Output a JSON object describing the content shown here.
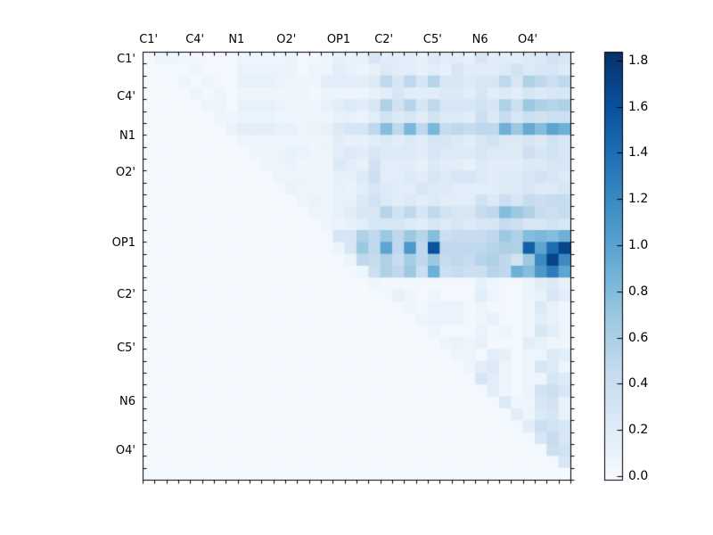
{
  "chart_data": {
    "type": "heatmap",
    "title": "",
    "colormap": "Blues",
    "vmin": 0.0,
    "vmax": 1.84,
    "n_cells": 36,
    "grid": false,
    "legend_position": "right-colorbar",
    "x_tick_labels": [
      "C1'",
      "C4'",
      "N1",
      "O2'",
      "OP1",
      "C2'",
      "C5'",
      "N6",
      "O4'"
    ],
    "y_tick_labels": [
      "C1'",
      "C4'",
      "N1",
      "O2'",
      "OP1",
      "C2'",
      "C5'",
      "N6",
      "O4'"
    ],
    "x_label_positions_cells": [
      0.5,
      4.4,
      7.9,
      12.1,
      16.5,
      20.3,
      24.4,
      28.4,
      32.4
    ],
    "y_label_positions_cells": [
      0.7,
      3.8,
      7.1,
      10.2,
      16.1,
      20.5,
      25.0,
      29.5,
      33.6
    ],
    "colorbar_tick_labels": [
      "0.0",
      "0.2",
      "0.4",
      "0.6",
      "0.8",
      "1.0",
      "1.2",
      "1.4",
      "1.6",
      "1.8"
    ],
    "colorbar_tick_values": [
      0.0,
      0.2,
      0.4,
      0.6,
      0.8,
      1.0,
      1.2,
      1.4,
      1.6,
      1.8
    ],
    "colormap_stops_hex": [
      "#f7fbff",
      "#deebf7",
      "#c6dbef",
      "#9ecae1",
      "#6baed6",
      "#4292c6",
      "#2171b5",
      "#08519c",
      "#08306b"
    ],
    "matrix": [
      [
        0.03,
        0.1,
        0.1,
        0.05,
        0.05,
        0.05,
        0.05,
        0.05,
        0.08,
        0.08,
        0.08,
        0.08,
        0.1,
        0.05,
        0.05,
        0.08,
        0.15,
        0.12,
        0.15,
        0.3,
        0.2,
        0.2,
        0.2,
        0.15,
        0.25,
        0.2,
        0.2,
        0.15,
        0.3,
        0.2,
        0.2,
        0.2,
        0.25,
        0.25,
        0.35,
        0.3
      ],
      [
        0.03,
        0.03,
        0.05,
        0.05,
        0.08,
        0.05,
        0.05,
        0.05,
        0.12,
        0.12,
        0.12,
        0.12,
        0.1,
        0.05,
        0.1,
        0.08,
        0.2,
        0.15,
        0.1,
        0.15,
        0.25,
        0.2,
        0.2,
        0.15,
        0.2,
        0.15,
        0.3,
        0.2,
        0.2,
        0.2,
        0.25,
        0.35,
        0.25,
        0.3,
        0.3,
        0.25
      ],
      [
        0.03,
        0.03,
        0.05,
        0.08,
        0.05,
        0.1,
        0.05,
        0.05,
        0.15,
        0.15,
        0.15,
        0.12,
        0.1,
        0.08,
        0.08,
        0.2,
        0.2,
        0.2,
        0.2,
        0.25,
        0.5,
        0.3,
        0.5,
        0.3,
        0.55,
        0.3,
        0.3,
        0.25,
        0.3,
        0.3,
        0.5,
        0.3,
        0.6,
        0.5,
        0.4,
        0.5
      ],
      [
        0.03,
        0.03,
        0.03,
        0.05,
        0.1,
        0.05,
        0.08,
        0.05,
        0.08,
        0.08,
        0.08,
        0.08,
        0.08,
        0.1,
        0.05,
        0.1,
        0.1,
        0.1,
        0.1,
        0.15,
        0.2,
        0.3,
        0.2,
        0.2,
        0.2,
        0.25,
        0.25,
        0.2,
        0.3,
        0.2,
        0.25,
        0.2,
        0.3,
        0.25,
        0.3,
        0.3
      ],
      [
        0.03,
        0.03,
        0.03,
        0.03,
        0.05,
        0.08,
        0.1,
        0.05,
        0.15,
        0.15,
        0.15,
        0.12,
        0.08,
        0.1,
        0.08,
        0.15,
        0.2,
        0.25,
        0.2,
        0.3,
        0.6,
        0.35,
        0.55,
        0.3,
        0.5,
        0.3,
        0.3,
        0.3,
        0.35,
        0.3,
        0.6,
        0.4,
        0.7,
        0.6,
        0.55,
        0.6
      ],
      [
        0.03,
        0.03,
        0.03,
        0.03,
        0.03,
        0.05,
        0.08,
        0.08,
        0.12,
        0.12,
        0.12,
        0.1,
        0.08,
        0.08,
        0.1,
        0.1,
        0.15,
        0.15,
        0.12,
        0.2,
        0.35,
        0.25,
        0.3,
        0.2,
        0.35,
        0.25,
        0.25,
        0.2,
        0.4,
        0.25,
        0.45,
        0.3,
        0.4,
        0.35,
        0.4,
        0.4
      ],
      [
        0.03,
        0.03,
        0.03,
        0.03,
        0.03,
        0.03,
        0.05,
        0.12,
        0.18,
        0.18,
        0.18,
        0.15,
        0.15,
        0.1,
        0.1,
        0.15,
        0.25,
        0.3,
        0.3,
        0.5,
        0.8,
        0.5,
        0.85,
        0.5,
        0.85,
        0.45,
        0.5,
        0.45,
        0.5,
        0.5,
        0.9,
        0.7,
        0.95,
        0.8,
        1.0,
        0.9
      ],
      [
        0.03,
        0.03,
        0.03,
        0.03,
        0.03,
        0.03,
        0.03,
        0.05,
        0.08,
        0.1,
        0.08,
        0.08,
        0.08,
        0.1,
        0.08,
        0.1,
        0.2,
        0.15,
        0.15,
        0.2,
        0.25,
        0.2,
        0.25,
        0.2,
        0.3,
        0.3,
        0.25,
        0.2,
        0.3,
        0.35,
        0.25,
        0.25,
        0.3,
        0.25,
        0.35,
        0.3
      ],
      [
        0.03,
        0.03,
        0.03,
        0.03,
        0.03,
        0.03,
        0.03,
        0.03,
        0.05,
        0.08,
        0.08,
        0.1,
        0.15,
        0.12,
        0.08,
        0.1,
        0.2,
        0.25,
        0.2,
        0.3,
        0.25,
        0.25,
        0.25,
        0.2,
        0.3,
        0.25,
        0.25,
        0.25,
        0.3,
        0.25,
        0.25,
        0.25,
        0.4,
        0.3,
        0.35,
        0.3
      ],
      [
        0.03,
        0.03,
        0.03,
        0.03,
        0.03,
        0.03,
        0.03,
        0.03,
        0.03,
        0.05,
        0.08,
        0.1,
        0.12,
        0.08,
        0.08,
        0.08,
        0.25,
        0.2,
        0.15,
        0.35,
        0.2,
        0.2,
        0.2,
        0.15,
        0.25,
        0.2,
        0.2,
        0.15,
        0.25,
        0.2,
        0.2,
        0.2,
        0.25,
        0.25,
        0.3,
        0.3
      ],
      [
        0.03,
        0.03,
        0.03,
        0.03,
        0.03,
        0.03,
        0.03,
        0.03,
        0.03,
        0.03,
        0.05,
        0.1,
        0.1,
        0.1,
        0.08,
        0.08,
        0.15,
        0.15,
        0.25,
        0.4,
        0.2,
        0.2,
        0.25,
        0.2,
        0.3,
        0.25,
        0.3,
        0.3,
        0.25,
        0.2,
        0.25,
        0.25,
        0.3,
        0.35,
        0.3,
        0.25
      ],
      [
        0.03,
        0.03,
        0.03,
        0.03,
        0.03,
        0.03,
        0.03,
        0.03,
        0.03,
        0.03,
        0.03,
        0.05,
        0.12,
        0.1,
        0.08,
        0.1,
        0.15,
        0.12,
        0.2,
        0.3,
        0.25,
        0.2,
        0.2,
        0.3,
        0.25,
        0.25,
        0.2,
        0.2,
        0.2,
        0.2,
        0.25,
        0.25,
        0.3,
        0.25,
        0.25,
        0.3
      ],
      [
        0.03,
        0.03,
        0.03,
        0.03,
        0.03,
        0.03,
        0.03,
        0.03,
        0.03,
        0.03,
        0.03,
        0.03,
        0.05,
        0.1,
        0.12,
        0.08,
        0.15,
        0.15,
        0.25,
        0.35,
        0.25,
        0.2,
        0.25,
        0.2,
        0.25,
        0.2,
        0.2,
        0.2,
        0.35,
        0.25,
        0.4,
        0.3,
        0.45,
        0.4,
        0.45,
        0.45
      ],
      [
        0.03,
        0.03,
        0.03,
        0.03,
        0.03,
        0.03,
        0.03,
        0.03,
        0.03,
        0.03,
        0.03,
        0.03,
        0.03,
        0.05,
        0.1,
        0.1,
        0.15,
        0.2,
        0.3,
        0.3,
        0.55,
        0.35,
        0.5,
        0.3,
        0.5,
        0.35,
        0.3,
        0.3,
        0.45,
        0.5,
        0.8,
        0.7,
        0.6,
        0.45,
        0.4,
        0.45
      ],
      [
        0.03,
        0.03,
        0.03,
        0.03,
        0.03,
        0.03,
        0.03,
        0.03,
        0.03,
        0.03,
        0.03,
        0.03,
        0.03,
        0.03,
        0.05,
        0.08,
        0.12,
        0.15,
        0.2,
        0.3,
        0.3,
        0.3,
        0.25,
        0.2,
        0.3,
        0.25,
        0.3,
        0.25,
        0.3,
        0.3,
        0.45,
        0.4,
        0.3,
        0.3,
        0.35,
        0.3
      ],
      [
        0.03,
        0.03,
        0.03,
        0.03,
        0.03,
        0.03,
        0.03,
        0.03,
        0.03,
        0.03,
        0.03,
        0.03,
        0.03,
        0.03,
        0.03,
        0.05,
        0.3,
        0.3,
        0.6,
        0.5,
        0.7,
        0.5,
        0.7,
        0.55,
        0.8,
        0.4,
        0.45,
        0.45,
        0.45,
        0.5,
        0.7,
        0.6,
        0.8,
        0.85,
        0.8,
        0.9
      ],
      [
        0.03,
        0.03,
        0.03,
        0.03,
        0.03,
        0.03,
        0.03,
        0.03,
        0.03,
        0.03,
        0.03,
        0.03,
        0.03,
        0.03,
        0.05,
        0.05,
        0.1,
        0.3,
        0.7,
        0.5,
        1.0,
        0.5,
        1.1,
        0.5,
        1.6,
        0.5,
        0.5,
        0.5,
        0.5,
        0.55,
        0.6,
        0.6,
        1.5,
        1.0,
        1.4,
        1.7
      ],
      [
        0.03,
        0.03,
        0.03,
        0.03,
        0.03,
        0.03,
        0.03,
        0.03,
        0.03,
        0.03,
        0.03,
        0.03,
        0.03,
        0.03,
        0.03,
        0.03,
        0.05,
        0.1,
        0.5,
        0.45,
        0.6,
        0.45,
        0.65,
        0.5,
        0.7,
        0.45,
        0.5,
        0.45,
        0.55,
        0.6,
        0.5,
        0.35,
        0.7,
        1.2,
        1.7,
        1.2
      ],
      [
        0.03,
        0.03,
        0.03,
        0.03,
        0.03,
        0.03,
        0.03,
        0.03,
        0.03,
        0.03,
        0.03,
        0.03,
        0.03,
        0.03,
        0.03,
        0.03,
        0.03,
        0.05,
        0.1,
        0.4,
        0.6,
        0.5,
        0.7,
        0.4,
        0.9,
        0.4,
        0.45,
        0.4,
        0.4,
        0.55,
        0.5,
        0.9,
        0.8,
        1.1,
        1.3,
        1.0
      ],
      [
        0.03,
        0.03,
        0.03,
        0.03,
        0.03,
        0.03,
        0.03,
        0.03,
        0.03,
        0.03,
        0.03,
        0.03,
        0.03,
        0.03,
        0.03,
        0.03,
        0.03,
        0.03,
        0.03,
        0.08,
        0.05,
        0.05,
        0.05,
        0.05,
        0.05,
        0.05,
        0.05,
        0.05,
        0.15,
        0.08,
        0.05,
        0.05,
        0.1,
        0.2,
        0.25,
        0.15
      ],
      [
        0.03,
        0.03,
        0.03,
        0.03,
        0.03,
        0.03,
        0.03,
        0.03,
        0.03,
        0.03,
        0.03,
        0.03,
        0.03,
        0.03,
        0.03,
        0.03,
        0.03,
        0.03,
        0.03,
        0.03,
        0.05,
        0.15,
        0.08,
        0.05,
        0.08,
        0.05,
        0.05,
        0.05,
        0.2,
        0.1,
        0.05,
        0.05,
        0.1,
        0.15,
        0.3,
        0.2
      ],
      [
        0.03,
        0.03,
        0.03,
        0.03,
        0.03,
        0.03,
        0.03,
        0.03,
        0.03,
        0.03,
        0.03,
        0.03,
        0.03,
        0.03,
        0.03,
        0.03,
        0.03,
        0.03,
        0.03,
        0.03,
        0.03,
        0.05,
        0.08,
        0.05,
        0.12,
        0.12,
        0.12,
        0.05,
        0.1,
        0.05,
        0.05,
        0.05,
        0.08,
        0.25,
        0.15,
        0.08
      ],
      [
        0.03,
        0.03,
        0.03,
        0.03,
        0.03,
        0.03,
        0.03,
        0.03,
        0.03,
        0.03,
        0.03,
        0.03,
        0.03,
        0.03,
        0.03,
        0.03,
        0.03,
        0.03,
        0.03,
        0.03,
        0.03,
        0.03,
        0.05,
        0.1,
        0.12,
        0.12,
        0.12,
        0.05,
        0.08,
        0.15,
        0.05,
        0.05,
        0.08,
        0.2,
        0.15,
        0.1
      ],
      [
        0.03,
        0.03,
        0.03,
        0.03,
        0.03,
        0.03,
        0.03,
        0.03,
        0.03,
        0.03,
        0.03,
        0.03,
        0.03,
        0.03,
        0.03,
        0.03,
        0.03,
        0.03,
        0.03,
        0.03,
        0.03,
        0.03,
        0.03,
        0.05,
        0.08,
        0.05,
        0.05,
        0.05,
        0.12,
        0.05,
        0.1,
        0.05,
        0.08,
        0.3,
        0.2,
        0.1
      ],
      [
        0.03,
        0.03,
        0.03,
        0.03,
        0.03,
        0.03,
        0.03,
        0.03,
        0.03,
        0.03,
        0.03,
        0.03,
        0.03,
        0.03,
        0.03,
        0.03,
        0.03,
        0.03,
        0.03,
        0.03,
        0.03,
        0.03,
        0.03,
        0.03,
        0.05,
        0.1,
        0.12,
        0.1,
        0.15,
        0.05,
        0.05,
        0.05,
        0.2,
        0.15,
        0.08,
        0.08
      ],
      [
        0.03,
        0.03,
        0.03,
        0.03,
        0.03,
        0.03,
        0.03,
        0.03,
        0.03,
        0.03,
        0.03,
        0.03,
        0.03,
        0.03,
        0.03,
        0.03,
        0.03,
        0.03,
        0.03,
        0.03,
        0.03,
        0.03,
        0.03,
        0.03,
        0.03,
        0.05,
        0.08,
        0.1,
        0.05,
        0.2,
        0.15,
        0.05,
        0.08,
        0.1,
        0.25,
        0.2
      ],
      [
        0.03,
        0.03,
        0.03,
        0.03,
        0.03,
        0.03,
        0.03,
        0.03,
        0.03,
        0.03,
        0.03,
        0.03,
        0.03,
        0.03,
        0.03,
        0.03,
        0.03,
        0.03,
        0.03,
        0.03,
        0.03,
        0.03,
        0.03,
        0.03,
        0.03,
        0.03,
        0.05,
        0.08,
        0.2,
        0.25,
        0.08,
        0.05,
        0.08,
        0.3,
        0.25,
        0.1
      ],
      [
        0.03,
        0.03,
        0.03,
        0.03,
        0.03,
        0.03,
        0.03,
        0.03,
        0.03,
        0.03,
        0.03,
        0.03,
        0.03,
        0.03,
        0.03,
        0.03,
        0.03,
        0.03,
        0.03,
        0.03,
        0.03,
        0.03,
        0.03,
        0.03,
        0.03,
        0.03,
        0.03,
        0.05,
        0.3,
        0.2,
        0.08,
        0.05,
        0.08,
        0.1,
        0.3,
        0.25
      ],
      [
        0.03,
        0.03,
        0.03,
        0.03,
        0.03,
        0.03,
        0.03,
        0.03,
        0.03,
        0.03,
        0.03,
        0.03,
        0.03,
        0.03,
        0.03,
        0.03,
        0.03,
        0.03,
        0.03,
        0.03,
        0.03,
        0.03,
        0.03,
        0.03,
        0.03,
        0.03,
        0.03,
        0.03,
        0.05,
        0.2,
        0.08,
        0.05,
        0.1,
        0.35,
        0.4,
        0.3
      ],
      [
        0.03,
        0.03,
        0.03,
        0.03,
        0.03,
        0.03,
        0.03,
        0.03,
        0.03,
        0.03,
        0.03,
        0.03,
        0.03,
        0.03,
        0.03,
        0.03,
        0.03,
        0.03,
        0.03,
        0.03,
        0.03,
        0.03,
        0.03,
        0.03,
        0.03,
        0.03,
        0.03,
        0.03,
        0.03,
        0.05,
        0.25,
        0.08,
        0.08,
        0.3,
        0.35,
        0.15
      ],
      [
        0.03,
        0.03,
        0.03,
        0.03,
        0.03,
        0.03,
        0.03,
        0.03,
        0.03,
        0.03,
        0.03,
        0.03,
        0.03,
        0.03,
        0.03,
        0.03,
        0.03,
        0.03,
        0.03,
        0.03,
        0.03,
        0.03,
        0.03,
        0.03,
        0.03,
        0.03,
        0.03,
        0.03,
        0.03,
        0.03,
        0.05,
        0.2,
        0.1,
        0.25,
        0.3,
        0.15
      ],
      [
        0.03,
        0.03,
        0.03,
        0.03,
        0.03,
        0.03,
        0.03,
        0.03,
        0.03,
        0.03,
        0.03,
        0.03,
        0.03,
        0.03,
        0.03,
        0.03,
        0.03,
        0.03,
        0.03,
        0.03,
        0.03,
        0.03,
        0.03,
        0.03,
        0.03,
        0.03,
        0.03,
        0.03,
        0.03,
        0.03,
        0.03,
        0.05,
        0.2,
        0.4,
        0.35,
        0.3
      ],
      [
        0.03,
        0.03,
        0.03,
        0.03,
        0.03,
        0.03,
        0.03,
        0.03,
        0.03,
        0.03,
        0.03,
        0.03,
        0.03,
        0.03,
        0.03,
        0.03,
        0.03,
        0.03,
        0.03,
        0.03,
        0.03,
        0.03,
        0.03,
        0.03,
        0.03,
        0.03,
        0.03,
        0.03,
        0.03,
        0.03,
        0.03,
        0.03,
        0.05,
        0.3,
        0.45,
        0.3
      ],
      [
        0.03,
        0.03,
        0.03,
        0.03,
        0.03,
        0.03,
        0.03,
        0.03,
        0.03,
        0.03,
        0.03,
        0.03,
        0.03,
        0.03,
        0.03,
        0.03,
        0.03,
        0.03,
        0.03,
        0.03,
        0.03,
        0.03,
        0.03,
        0.03,
        0.03,
        0.03,
        0.03,
        0.03,
        0.03,
        0.03,
        0.03,
        0.03,
        0.03,
        0.05,
        0.4,
        0.35
      ],
      [
        0.03,
        0.03,
        0.03,
        0.03,
        0.03,
        0.03,
        0.03,
        0.03,
        0.03,
        0.03,
        0.03,
        0.03,
        0.03,
        0.03,
        0.03,
        0.03,
        0.03,
        0.03,
        0.03,
        0.03,
        0.03,
        0.03,
        0.03,
        0.03,
        0.03,
        0.03,
        0.03,
        0.03,
        0.03,
        0.03,
        0.03,
        0.03,
        0.03,
        0.03,
        0.05,
        0.3
      ],
      [
        0.03,
        0.03,
        0.03,
        0.03,
        0.03,
        0.03,
        0.03,
        0.03,
        0.03,
        0.03,
        0.03,
        0.03,
        0.03,
        0.03,
        0.03,
        0.03,
        0.03,
        0.03,
        0.03,
        0.03,
        0.03,
        0.03,
        0.03,
        0.03,
        0.03,
        0.03,
        0.03,
        0.03,
        0.03,
        0.03,
        0.03,
        0.03,
        0.03,
        0.03,
        0.03,
        0.03
      ]
    ]
  }
}
